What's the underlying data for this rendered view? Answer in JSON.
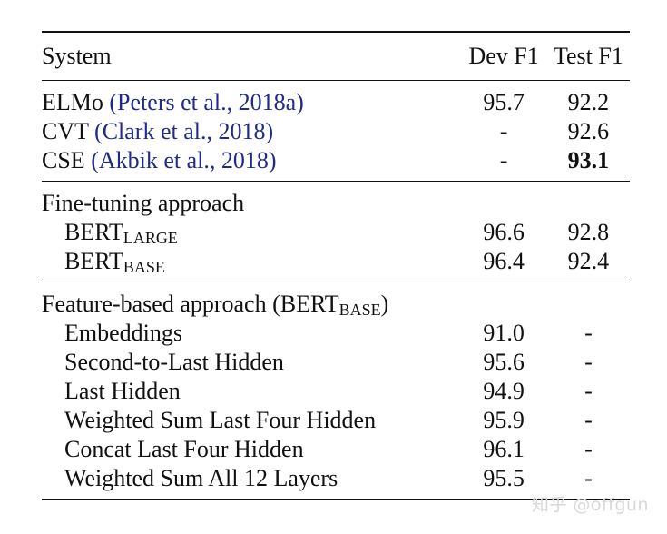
{
  "table": {
    "headers": {
      "system": "System",
      "dev": "Dev F1",
      "test": "Test F1"
    },
    "baselines": [
      {
        "name": "ELMo",
        "citation": "(Peters et al., 2018a)",
        "dev": "95.7",
        "test": "92.2"
      },
      {
        "name": "CVT",
        "citation": "(Clark et al., 2018)",
        "dev": "-",
        "test": "92.6"
      },
      {
        "name": "CSE",
        "citation": "(Akbik et al., 2018)",
        "dev": "-",
        "test": "93.1"
      }
    ],
    "fine_tuning": {
      "title": "Fine-tuning approach",
      "rows": [
        {
          "name": "BERT",
          "sub": "LARGE",
          "dev": "96.6",
          "test": "92.8"
        },
        {
          "name": "BERT",
          "sub": "BASE",
          "dev": "96.4",
          "test": "92.4"
        }
      ]
    },
    "feature_based": {
      "title_prefix": "Feature-based approach (BERT",
      "title_sub": "BASE",
      "title_suffix": ")",
      "rows": [
        {
          "name": "Embeddings",
          "dev": "91.0",
          "test": "-"
        },
        {
          "name": "Second-to-Last Hidden",
          "dev": "95.6",
          "test": "-"
        },
        {
          "name": "Last Hidden",
          "dev": "94.9",
          "test": "-"
        },
        {
          "name": "Weighted Sum Last Four Hidden",
          "dev": "95.9",
          "test": "-"
        },
        {
          "name": "Concat Last Four Hidden",
          "dev": "96.1",
          "test": "-"
        },
        {
          "name": "Weighted Sum All 12 Layers",
          "dev": "95.5",
          "test": "-"
        }
      ]
    }
  },
  "watermark": "知乎 @offgun",
  "colors": {
    "citation": "#1f2a8a",
    "text": "#111111"
  }
}
